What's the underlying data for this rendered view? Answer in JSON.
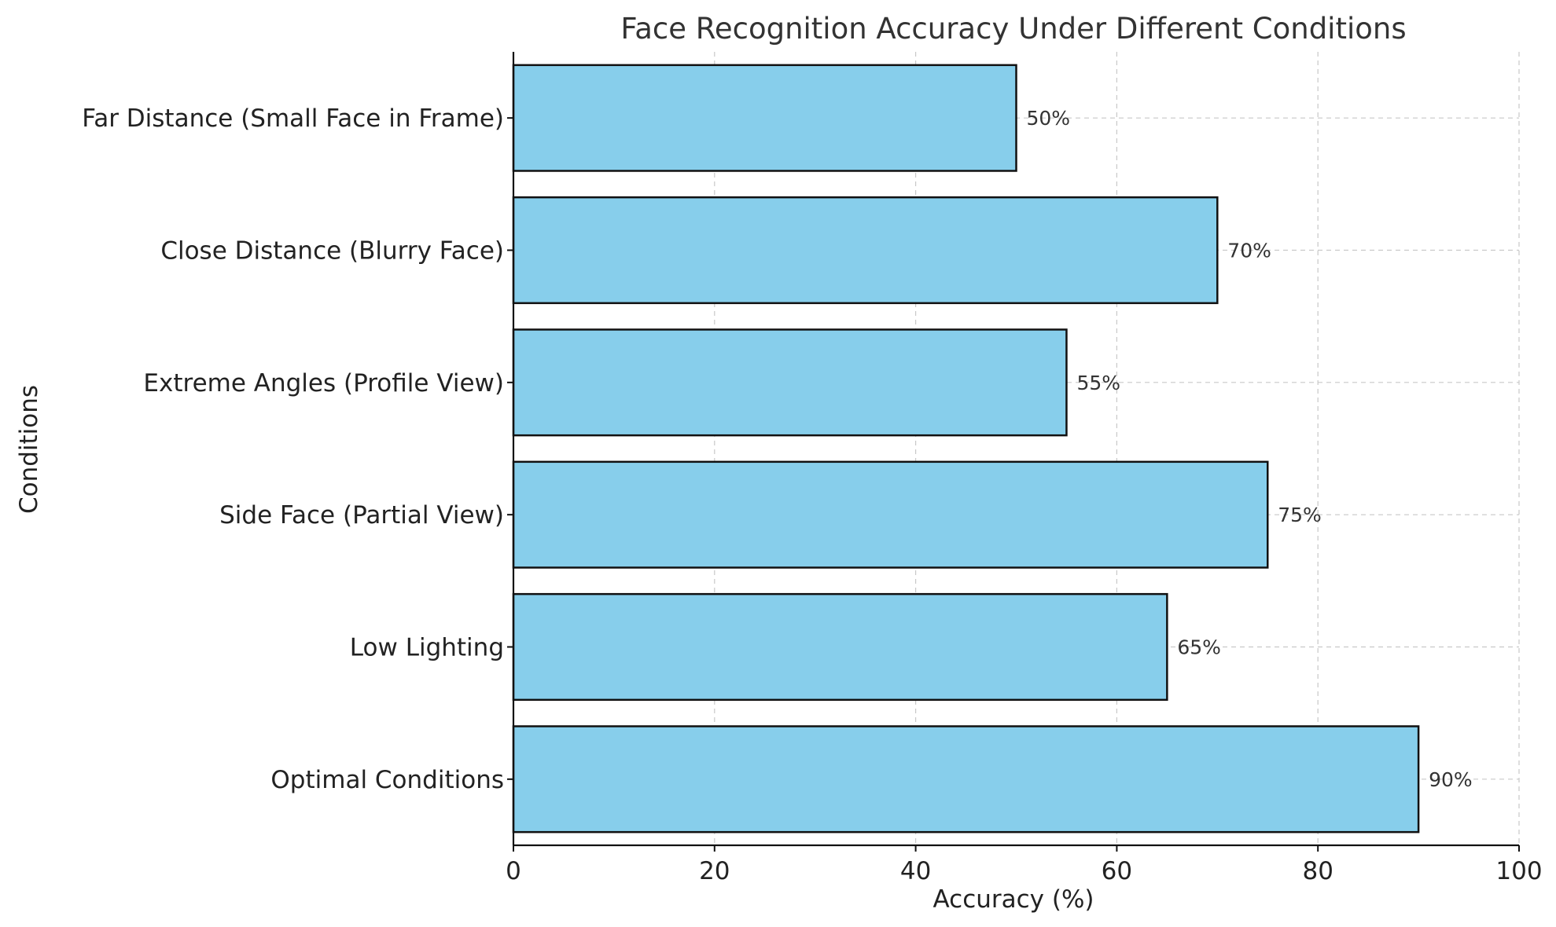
{
  "chart_data": {
    "type": "bar",
    "orientation": "horizontal",
    "title": "Face Recognition Accuracy Under Different Conditions",
    "xlabel": "Accuracy (%)",
    "ylabel": "Conditions",
    "categories": [
      "Optimal Conditions",
      "Low Lighting",
      "Side Face (Partial View)",
      "Extreme Angles (Profile View)",
      "Close Distance (Blurry Face)",
      "Far Distance (Small Face in Frame)"
    ],
    "values": [
      90,
      65,
      75,
      55,
      70,
      50
    ],
    "data_labels": [
      "90%",
      "65%",
      "75%",
      "55%",
      "70%",
      "50%"
    ],
    "xlim": [
      0,
      100
    ],
    "xticks": [
      0,
      20,
      40,
      60,
      80,
      100
    ],
    "grid": true,
    "colors": {
      "bar_fill": "#87CEEB",
      "bar_edge": "#111111"
    }
  }
}
